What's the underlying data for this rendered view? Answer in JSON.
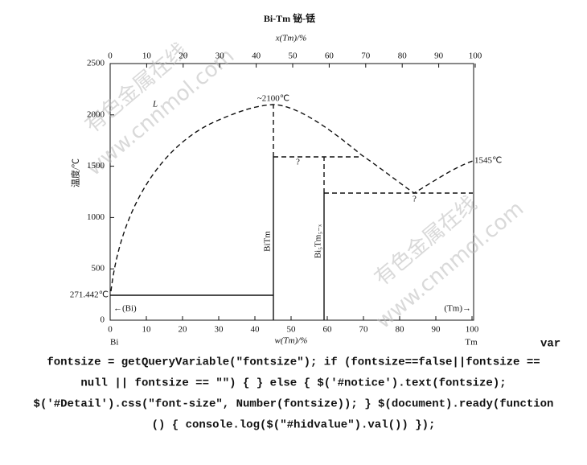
{
  "title": "Bi-Tm   铋-铥",
  "top_axis": {
    "label": "x(Tm)/%",
    "ticks": [
      "0",
      "10",
      "20",
      "30",
      "40",
      "50",
      "60",
      "70",
      "80",
      "90",
      "100"
    ]
  },
  "bottom_axis": {
    "label": "w(Tm)/%",
    "ticks": [
      "0",
      "10",
      "20",
      "30",
      "40",
      "50",
      "60",
      "70",
      "80",
      "90",
      "100"
    ]
  },
  "left_axis": {
    "label": "温度/℃",
    "ticks": [
      "0",
      "500",
      "1000",
      "1500",
      "2000",
      "2500"
    ]
  },
  "annotations": {
    "liquid": "L",
    "peak": "~2100℃",
    "tm_melt": "1545℃",
    "bi_melt": "271.442℃",
    "q1": "?",
    "q2": "?",
    "bitm": "BiTm",
    "bi5tm": "Bi₅Tm₅₋ₓ",
    "bi_phase": "←(Bi)",
    "tm_phase": "(Tm)→",
    "bi": "Bi",
    "tm": "Tm"
  },
  "watermarks": [
    "有色金属在线",
    "www.cnnmol.com",
    "有色金属在线",
    "www.cnnmol.com"
  ],
  "code": [
    "var",
    "fontsize = getQueryVariable(″fontsize″); if (fontsize==false||fontsize ==",
    "null || fontsize == ″″) { } else { $('#notice').text(fontsize);",
    "$('#Detail').css(″font-size″, Number(fontsize)); } $(document).ready(function",
    "() { console.log($(″#hidvalue″).val()) });"
  ]
}
